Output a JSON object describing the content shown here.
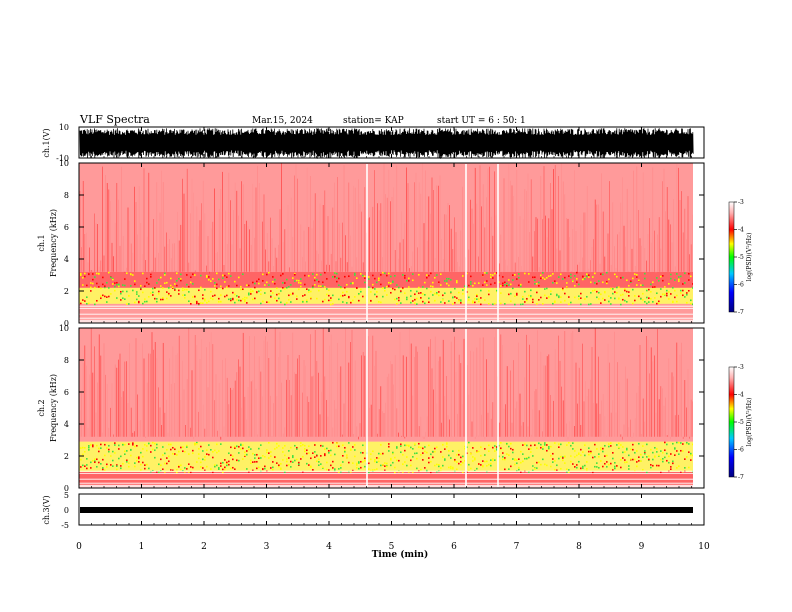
{
  "header": {
    "title": "VLF Spectra",
    "date": "Mar.15, 2024",
    "station": "station= KAP",
    "start": "start  UT =  6 : 50: 1"
  },
  "chart_data": [
    {
      "type": "line",
      "panel": "ch1-waveform",
      "ylabel": "ch.1(V)",
      "ylim": [
        -10,
        10
      ],
      "y_ticks": [
        "10",
        "-10"
      ],
      "note_series": "dense waveform shown as black band between about -9 and 9 V"
    },
    {
      "type": "heatmap",
      "panel": "ch1-spectrogram",
      "ylabel_top": "ch.1",
      "ylabel": "Frequency  (kHz)",
      "ylim": [
        0,
        10
      ],
      "y_ticks": [
        "0",
        "2",
        "4",
        "6",
        "8",
        "10"
      ],
      "colorbar": {
        "label": "log(PSD)(V²/Hz)",
        "ticks": [
          "-3",
          "-4",
          "-5",
          "-6",
          "-7"
        ],
        "range": [
          -7,
          -3
        ]
      },
      "bands_khz": [
        {
          "from": 0.2,
          "to": 1.2,
          "level": -3.6
        },
        {
          "from": 1.2,
          "to": 2.2,
          "level": -4.4
        },
        {
          "from": 2.2,
          "to": 3.2,
          "level": -4.0
        },
        {
          "from": 3.2,
          "to": 10,
          "level": -3.2
        }
      ]
    },
    {
      "type": "heatmap",
      "panel": "ch2-spectrogram",
      "ylabel_top": "ch.2",
      "ylabel": "Frequency  (kHz)",
      "ylim": [
        0,
        10
      ],
      "y_ticks": [
        "0",
        "2",
        "4",
        "6",
        "8",
        "10"
      ],
      "colorbar": {
        "label": "log(PSD)(V²/Hz)",
        "ticks": [
          "-3",
          "-4",
          "-5",
          "-6",
          "-7"
        ],
        "range": [
          -7,
          -3
        ]
      },
      "bands_khz": [
        {
          "from": 0.2,
          "to": 1.0,
          "level": -3.8
        },
        {
          "from": 1.0,
          "to": 2.0,
          "level": -4.8
        },
        {
          "from": 2.0,
          "to": 2.9,
          "level": -4.6
        },
        {
          "from": 2.9,
          "to": 10,
          "level": -3.2
        }
      ]
    },
    {
      "type": "line",
      "panel": "ch3-waveform",
      "ylabel": "ch.3(V)",
      "ylim": [
        -5,
        5
      ],
      "y_ticks": [
        "5",
        "0",
        "-5"
      ],
      "note_series": "narrow band around -0.5 V"
    }
  ],
  "xaxis": {
    "label": "Time  (min)",
    "range": [
      0,
      10
    ],
    "ticks": [
      "0",
      "1",
      "2",
      "3",
      "4",
      "5",
      "6",
      "7",
      "8",
      "9",
      "10"
    ]
  },
  "colors": {
    "low": "#1a1aff",
    "mid": "#22d022",
    "high": "#ff0000",
    "top": "#ffffff"
  }
}
